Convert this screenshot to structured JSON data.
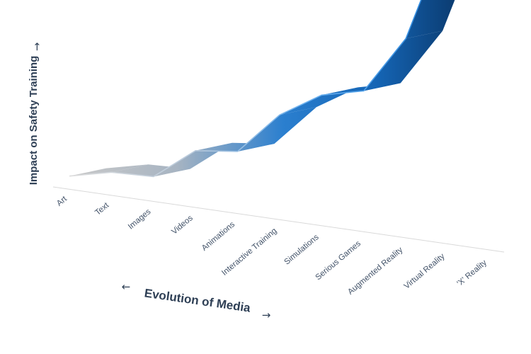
{
  "chart_data": {
    "type": "line",
    "style": "3d-ribbon",
    "title": "",
    "xlabel": "Evolution of Media",
    "ylabel": "Impact on Safety Training",
    "x_arrow_left": "←",
    "x_arrow_right": "→",
    "y_arrow": "→",
    "categories": [
      "Art",
      "Text",
      "Images",
      "Videos",
      "Animations",
      "Interactive Training",
      "Simulations",
      "Serious Games",
      "Augmented Reality",
      "Virtual Reality",
      "'X' Reality"
    ],
    "series": [
      {
        "values": [
          1,
          6,
          6,
          18,
          18,
          30,
          35,
          35,
          47,
          70,
          75
        ]
      }
    ],
    "ylim": [
      0,
      100
    ],
    "grid": false,
    "legend": "none",
    "colors": {
      "start": "#c4c4c4",
      "mid": "#1f77c8",
      "end": "#0b3d73",
      "edge": "#6fb3f0"
    }
  }
}
